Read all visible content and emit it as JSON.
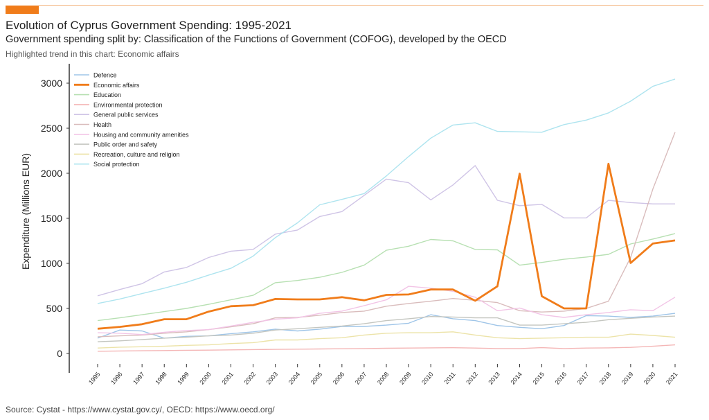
{
  "header": {
    "title": "Evolution of Cyprus Government Spending: 1995-2021",
    "subtitle": "Government spending split by: Classification of the Functions of Government (COFOG), developed by the OECD",
    "highlight_note": "Highlighted trend in this chart: Economic affairs"
  },
  "footer": {
    "source": "Source: Cystat - https://www.cystat.gov.cy/, OECD: https://www.oecd.org/"
  },
  "colors": {
    "accent": "#f07c1a",
    "accent_line": "#f3b27a"
  },
  "chart_data": {
    "type": "line",
    "title": "Evolution of Cyprus Government Spending: 1995-2021",
    "xlabel": "",
    "ylabel": "Expenditure (Millions EUR)",
    "ylim": [
      -100,
      3250
    ],
    "yticks": [
      0,
      500,
      1000,
      1500,
      2000,
      2500,
      3000
    ],
    "grid": false,
    "legend_position": "top-left",
    "highlighted_series": "Economic affairs",
    "x": [
      "1995",
      "1996",
      "1997",
      "1998",
      "1999",
      "2000",
      "2001",
      "2002",
      "2003",
      "2004",
      "2005",
      "2006",
      "2007",
      "2008",
      "2009",
      "2010",
      "2011",
      "2012",
      "2013",
      "2014",
      "2015",
      "2016",
      "2017",
      "2018",
      "2019",
      "2020",
      "2021"
    ],
    "series": [
      {
        "name": "Defence",
        "color": "#9fc5e8",
        "highlight": false,
        "values": [
          170,
          260,
          250,
          170,
          190,
          195,
          220,
          240,
          270,
          250,
          270,
          300,
          300,
          315,
          335,
          430,
          385,
          365,
          310,
          290,
          275,
          310,
          420,
          415,
          400,
          415,
          445
        ]
      },
      {
        "name": "Economic affairs",
        "color": "#f07c1a",
        "highlight": true,
        "values": [
          275,
          295,
          325,
          380,
          380,
          465,
          525,
          535,
          605,
          600,
          600,
          625,
          590,
          650,
          655,
          710,
          710,
          585,
          745,
          1995,
          635,
          500,
          500,
          2105,
          1005,
          1220,
          1255
        ]
      },
      {
        "name": "Education",
        "color": "#b7e0b2",
        "highlight": false,
        "values": [
          365,
          395,
          430,
          465,
          500,
          545,
          595,
          645,
          785,
          810,
          845,
          900,
          980,
          1145,
          1190,
          1265,
          1250,
          1155,
          1150,
          980,
          1010,
          1045,
          1070,
          1100,
          1215,
          1270,
          1330
        ]
      },
      {
        "name": "Environmental protection",
        "color": "#f4b6b6",
        "highlight": false,
        "values": [
          25,
          28,
          30,
          32,
          35,
          37,
          40,
          43,
          45,
          48,
          50,
          52,
          55,
          58,
          60,
          62,
          64,
          60,
          55,
          55,
          65,
          55,
          60,
          62,
          68,
          80,
          95
        ]
      },
      {
        "name": "General public services",
        "color": "#cfc4e6",
        "highlight": false,
        "values": [
          640,
          710,
          775,
          905,
          955,
          1065,
          1135,
          1155,
          1325,
          1370,
          1520,
          1575,
          1755,
          1935,
          1895,
          1705,
          1870,
          2085,
          1700,
          1640,
          1655,
          1505,
          1505,
          1700,
          1675,
          1660,
          1660
        ]
      },
      {
        "name": "Health",
        "color": "#d9bcbc",
        "highlight": false,
        "values": [
          185,
          195,
          205,
          225,
          240,
          265,
          295,
          330,
          395,
          400,
          425,
          455,
          470,
          525,
          555,
          580,
          610,
          590,
          565,
          475,
          460,
          470,
          500,
          580,
          1065,
          1825,
          2455
        ]
      },
      {
        "name": "Housing and community amenities",
        "color": "#f2c4e6",
        "highlight": false,
        "values": [
          230,
          225,
          210,
          235,
          255,
          265,
          305,
          345,
          380,
          395,
          445,
          470,
          530,
          595,
          745,
          725,
          690,
          625,
          475,
          505,
          430,
          400,
          430,
          455,
          485,
          475,
          625
        ]
      },
      {
        "name": "Public order and safety",
        "color": "#c4c6c0",
        "highlight": false,
        "values": [
          130,
          140,
          155,
          170,
          180,
          195,
          205,
          225,
          260,
          275,
          290,
          305,
          330,
          365,
          385,
          410,
          405,
          395,
          395,
          315,
          315,
          330,
          345,
          375,
          390,
          405,
          415
        ]
      },
      {
        "name": "Recreation, culture and religion",
        "color": "#ece3a8",
        "highlight": false,
        "values": [
          60,
          70,
          75,
          80,
          90,
          95,
          110,
          120,
          150,
          150,
          165,
          175,
          205,
          225,
          230,
          230,
          240,
          205,
          175,
          165,
          170,
          175,
          180,
          180,
          215,
          200,
          180
        ]
      },
      {
        "name": "Social protection",
        "color": "#aee4ef",
        "highlight": false,
        "values": [
          555,
          605,
          665,
          725,
          790,
          870,
          945,
          1080,
          1285,
          1450,
          1650,
          1710,
          1775,
          1970,
          2185,
          2390,
          2535,
          2560,
          2465,
          2460,
          2455,
          2540,
          2590,
          2670,
          2800,
          2965,
          3045
        ]
      }
    ]
  }
}
